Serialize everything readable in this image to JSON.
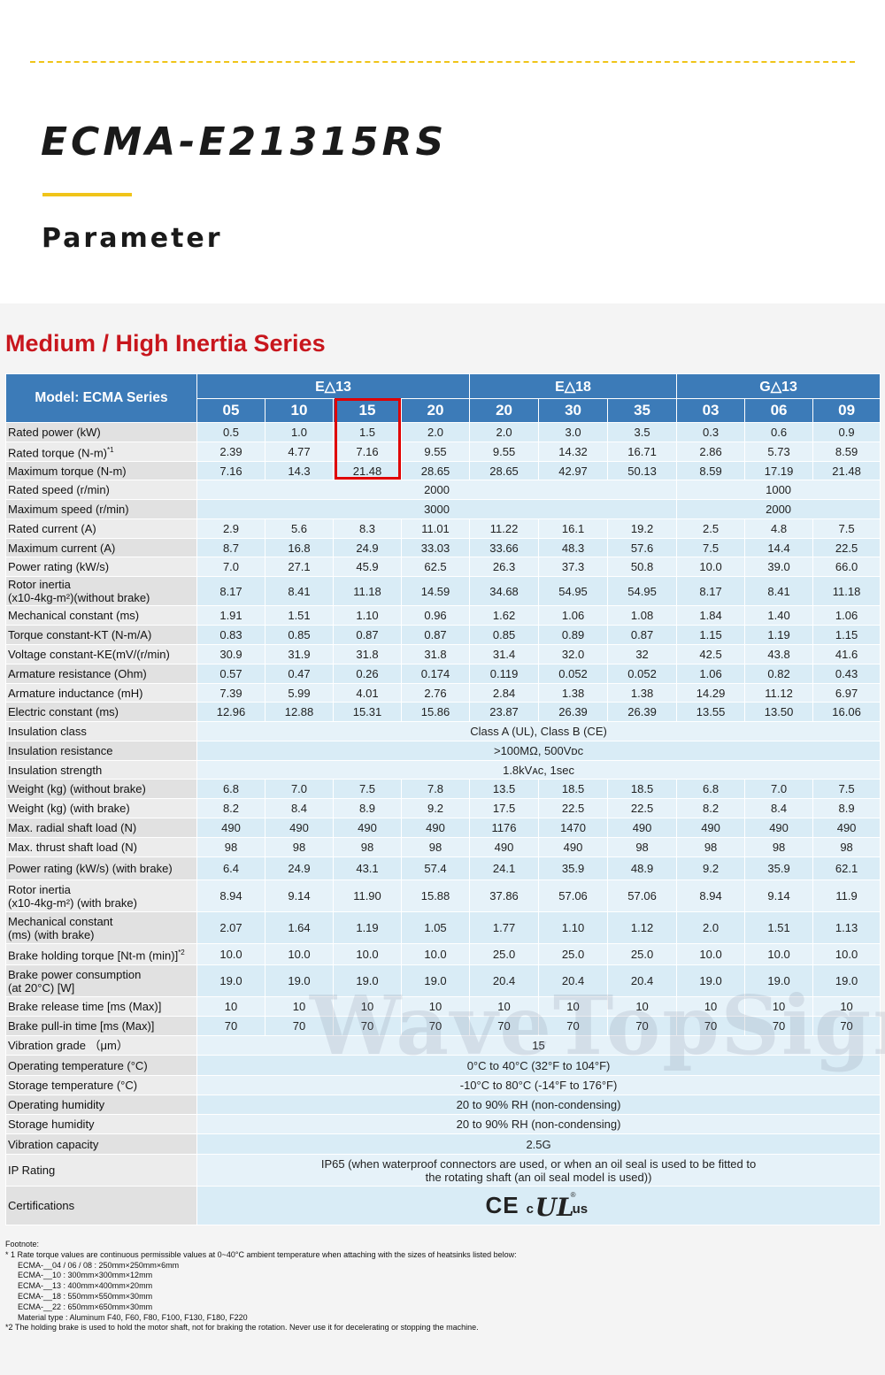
{
  "header": {
    "product_title": "ECMA-E21315RS",
    "section_label": "Parameter"
  },
  "series_title": "Medium / High Inertia Series",
  "watermark_text": "WaveTopSign",
  "table": {
    "corner_label": "Model: ECMA Series",
    "groups": [
      {
        "label": "E△13",
        "span": 4
      },
      {
        "label": "E△18",
        "span": 3
      },
      {
        "label": "G△13",
        "span": 3
      }
    ],
    "models": [
      "05",
      "10",
      "15",
      "20",
      "20",
      "30",
      "35",
      "03",
      "06",
      "09"
    ],
    "highlighted_model_index": 2,
    "rows": [
      {
        "label": "Rated power (kW)",
        "values": [
          "0.5",
          "1.0",
          "1.5",
          "2.0",
          "2.0",
          "3.0",
          "3.5",
          "0.3",
          "0.6",
          "0.9"
        ]
      },
      {
        "label": "Rated torque (N-m)",
        "label_sup": "*1",
        "values": [
          "2.39",
          "4.77",
          "7.16",
          "9.55",
          "9.55",
          "14.32",
          "16.71",
          "2.86",
          "5.73",
          "8.59"
        ]
      },
      {
        "label": "Maximum torque (N-m)",
        "values": [
          "7.16",
          "14.3",
          "21.48",
          "28.65",
          "28.65",
          "42.97",
          "50.13",
          "8.59",
          "17.19",
          "21.48"
        ]
      },
      {
        "label": "Rated speed (r/min)",
        "spans": [
          {
            "value": "2000",
            "span": 7
          },
          {
            "value": "1000",
            "span": 3
          }
        ]
      },
      {
        "label": "Maximum speed (r/min)",
        "spans": [
          {
            "value": "3000",
            "span": 7
          },
          {
            "value": "2000",
            "span": 3
          }
        ]
      },
      {
        "label": "Rated current (A)",
        "values": [
          "2.9",
          "5.6",
          "8.3",
          "11.01",
          "11.22",
          "16.1",
          "19.2",
          "2.5",
          "4.8",
          "7.5"
        ]
      },
      {
        "label": "Maximum current (A)",
        "values": [
          "8.7",
          "16.8",
          "24.9",
          "33.03",
          "33.66",
          "48.3",
          "57.6",
          "7.5",
          "14.4",
          "22.5"
        ]
      },
      {
        "label": "Power rating (kW/s)",
        "values": [
          "7.0",
          "27.1",
          "45.9",
          "62.5",
          "26.3",
          "37.3",
          "50.8",
          "10.0",
          "39.0",
          "66.0"
        ]
      },
      {
        "label": "Rotor inertia",
        "label2": "(x10-4kg-m²)(without brake)",
        "values": [
          "8.17",
          "8.41",
          "11.18",
          "14.59",
          "34.68",
          "54.95",
          "54.95",
          "8.17",
          "8.41",
          "11.18"
        ]
      },
      {
        "label": "Mechanical constant (ms)",
        "values": [
          "1.91",
          "1.51",
          "1.10",
          "0.96",
          "1.62",
          "1.06",
          "1.08",
          "1.84",
          "1.40",
          "1.06"
        ]
      },
      {
        "label": "Torque constant-KT (N-m/A)",
        "values": [
          "0.83",
          "0.85",
          "0.87",
          "0.87",
          "0.85",
          "0.89",
          "0.87",
          "1.15",
          "1.19",
          "1.15"
        ]
      },
      {
        "label": "Voltage constant-KE(mV/(r/min)",
        "values": [
          "30.9",
          "31.9",
          "31.8",
          "31.8",
          "31.4",
          "32.0",
          "32",
          "42.5",
          "43.8",
          "41.6"
        ]
      },
      {
        "label": "Armature resistance (Ohm)",
        "values": [
          "0.57",
          "0.47",
          "0.26",
          "0.174",
          "0.119",
          "0.052",
          "0.052",
          "1.06",
          "0.82",
          "0.43"
        ]
      },
      {
        "label": "Armature inductance (mH)",
        "values": [
          "7.39",
          "5.99",
          "4.01",
          "2.76",
          "2.84",
          "1.38",
          "1.38",
          "14.29",
          "11.12",
          "6.97"
        ]
      },
      {
        "label": "Electric constant (ms)",
        "values": [
          "12.96",
          "12.88",
          "15.31",
          "15.86",
          "23.87",
          "26.39",
          "26.39",
          "13.55",
          "13.50",
          "16.06"
        ]
      },
      {
        "label": "Insulation class",
        "spans": [
          {
            "value": "Class A (UL), Class B (CE)",
            "span": 10
          }
        ]
      },
      {
        "label": "Insulation resistance",
        "spans": [
          {
            "value": ">100MΩ, 500Vᴅᴄ",
            "span": 10
          }
        ]
      },
      {
        "label": "Insulation strength",
        "spans": [
          {
            "value": "1.8kVᴀᴄ, 1sec",
            "span": 10
          }
        ]
      },
      {
        "label": "Weight (kg) (without brake)",
        "values": [
          "6.8",
          "7.0",
          "7.5",
          "7.8",
          "13.5",
          "18.5",
          "18.5",
          "6.8",
          "7.0",
          "7.5"
        ]
      },
      {
        "label": "Weight (kg) (with brake)",
        "values": [
          "8.2",
          "8.4",
          "8.9",
          "9.2",
          "17.5",
          "22.5",
          "22.5",
          "8.2",
          "8.4",
          "8.9"
        ]
      },
      {
        "label": "Max. radial shaft load (N)",
        "values": [
          "490",
          "490",
          "490",
          "490",
          "1176",
          "1470",
          "490",
          "490",
          "490",
          "490"
        ]
      },
      {
        "label": "Max. thrust shaft load (N)",
        "values": [
          "98",
          "98",
          "98",
          "98",
          "490",
          "490",
          "98",
          "98",
          "98",
          "98"
        ]
      },
      {
        "label": "Power rating (kW/s) (with brake)",
        "values": [
          "6.4",
          "24.9",
          "43.1",
          "57.4",
          "24.1",
          "35.9",
          "48.9",
          "9.2",
          "35.9",
          "62.1"
        ]
      },
      {
        "label": "Rotor inertia",
        "label2": "(x10-4kg-m²) (with brake)",
        "values": [
          "8.94",
          "9.14",
          "11.90",
          "15.88",
          "37.86",
          "57.06",
          "57.06",
          "8.94",
          "9.14",
          "11.9"
        ]
      },
      {
        "label": "Mechanical constant",
        "label2": "(ms) (with brake)",
        "values": [
          "2.07",
          "1.64",
          "1.19",
          "1.05",
          "1.77",
          "1.10",
          "1.12",
          "2.0",
          "1.51",
          "1.13"
        ]
      },
      {
        "label": "Brake holding torque [Nt-m (min)]",
        "label_sup": "*2",
        "values": [
          "10.0",
          "10.0",
          "10.0",
          "10.0",
          "25.0",
          "25.0",
          "25.0",
          "10.0",
          "10.0",
          "10.0"
        ]
      },
      {
        "label": "Brake power consumption",
        "label2": "(at 20°C) [W]",
        "values": [
          "19.0",
          "19.0",
          "19.0",
          "19.0",
          "20.4",
          "20.4",
          "20.4",
          "19.0",
          "19.0",
          "19.0"
        ]
      },
      {
        "label": "Brake release time [ms (Max)]",
        "values": [
          "10",
          "10",
          "10",
          "10",
          "10",
          "10",
          "10",
          "10",
          "10",
          "10"
        ]
      },
      {
        "label": "Brake pull-in time [ms (Max)]",
        "values": [
          "70",
          "70",
          "70",
          "70",
          "70",
          "70",
          "70",
          "70",
          "70",
          "70"
        ]
      },
      {
        "label": "Vibration grade （μm）",
        "spans": [
          {
            "value": "15",
            "span": 10
          }
        ]
      },
      {
        "label": "Operating temperature (°C)",
        "spans": [
          {
            "value": "0°C to 40°C (32°F to 104°F)",
            "span": 10
          }
        ]
      },
      {
        "label": "Storage temperature (°C)",
        "spans": [
          {
            "value": "-10°C to 80°C (-14°F to 176°F)",
            "span": 10
          }
        ]
      },
      {
        "label": "Operating humidity",
        "spans": [
          {
            "value": "20 to 90% RH (non-condensing)",
            "span": 10
          }
        ]
      },
      {
        "label": "Storage humidity",
        "spans": [
          {
            "value": "20 to 90% RH (non-condensing)",
            "span": 10
          }
        ]
      },
      {
        "label": "Vibration capacity",
        "spans": [
          {
            "value": "2.5G",
            "span": 10
          }
        ]
      },
      {
        "label": "IP Rating",
        "spans": [
          {
            "value": "IP65 (when waterproof connectors are used, or when an oil seal is used to be fitted to",
            "value2": "the rotating shaft (an oil seal model is used))",
            "span": 10
          }
        ]
      }
    ],
    "certifications": {
      "label": "Certifications",
      "ce": "CE",
      "ul_c": "c",
      "ul_mark": "UL",
      "ul_us": "us",
      "ul_r": "®"
    }
  },
  "footnotes": [
    "Footnote:",
    "* 1 Rate torque values are continuous permissible values at 0~40°C ambient temperature when attaching with the sizes of heatsinks listed below:",
    "ECMA-__04 / 06 / 08 : 250mm×250mm×6mm",
    "ECMA-__10 : 300mm×300mm×12mm",
    "ECMA-__13 : 400mm×400mm×20mm",
    "ECMA-__18 : 550mm×550mm×30mm",
    "ECMA-__22 : 650mm×650mm×30mm",
    "Material type : Aluminum  F40, F60, F80, F100, F130, F180, F220",
    "*2 The holding brake is used to hold the motor shaft, not for braking the rotation. Never use it for decelerating or stopping the machine."
  ],
  "colors": {
    "accent_yellow": "#f0c419",
    "series_red": "#c8161d",
    "header_blue": "#3c7bb8",
    "highlight_red": "#e00000"
  }
}
